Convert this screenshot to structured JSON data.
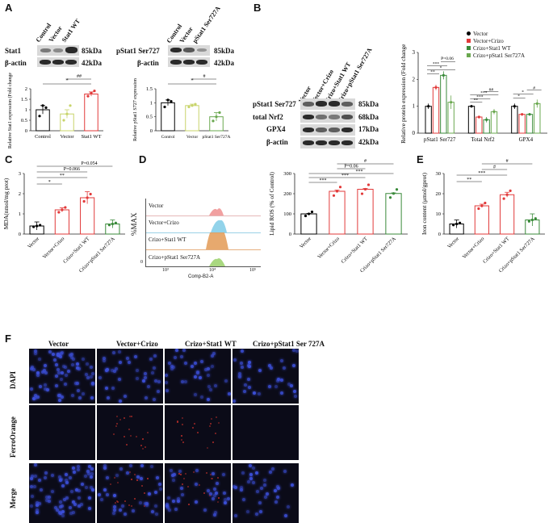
{
  "panels": {
    "A": "A",
    "B": "B",
    "C": "C",
    "D": "D",
    "E": "E",
    "F": "F"
  },
  "blotA1": {
    "lanes": [
      "Control",
      "Vector",
      "Stat1 WT"
    ],
    "rows": [
      {
        "name": "Stat1",
        "kda": "85kDa"
      },
      {
        "name": "β-actin",
        "kda": "42kDa"
      }
    ]
  },
  "blotA2": {
    "lanes": [
      "Control",
      "Vector",
      "pStat1 Ser727A"
    ],
    "rows": [
      {
        "name": "pStat1 Ser727",
        "kda": "85kDa"
      },
      {
        "name": "β-actin",
        "kda": "42kDa"
      }
    ]
  },
  "blotB": {
    "lanes": [
      "Vector",
      "Vector+Crizo",
      "Crizo+Stat1 WT",
      "Crizo+pStat1 Ser727A"
    ],
    "rows": [
      {
        "name": "pStat1 Ser727",
        "kda": "85kDa"
      },
      {
        "name": "total Nrf2",
        "kda": "68kDa"
      },
      {
        "name": "GPX4",
        "kda": "17kDa"
      },
      {
        "name": "β-actin",
        "kda": "42kDa"
      }
    ]
  },
  "legendB": [
    "Vector",
    "Vector+Crizo",
    "Crizo+Stat1 WT",
    "Crizo+pStat1 Ser727A"
  ],
  "flow": {
    "ylabel": "%MAX",
    "xlabel": "Comp-B2-A",
    "tracks": [
      "Vector",
      "Vector+Crizo",
      "Crizo+Stat1 WT",
      "Crizo+pStat1 Ser727A"
    ],
    "ticks": [
      "10³",
      "10⁴",
      "10⁵"
    ],
    "ytick": "0"
  },
  "micro": {
    "cols": [
      "Vector",
      "Vector+Crizo",
      "Crizo+Stat1 WT",
      "Crizo+pStat1 Ser 727A"
    ],
    "rows": [
      "DAPI",
      "FerroOrange",
      "Merge"
    ]
  },
  "chart_data": [
    {
      "id": "A1",
      "type": "bar",
      "ylabel": "Relative Stat1 expression (Fold change)",
      "categories": [
        "Control",
        "Vector",
        "Stat1 WT"
      ],
      "values": [
        1.0,
        0.8,
        1.75
      ],
      "errors": [
        0.2,
        0.2,
        0.1
      ],
      "ylim": [
        0,
        2.0
      ],
      "yticks": [
        0.0,
        0.5,
        1.0,
        1.5,
        2.0
      ],
      "colors": [
        "#000000",
        "#c8d46a",
        "#e23a3a"
      ],
      "points": [
        [
          0.7,
          1.2,
          1.1
        ],
        [
          0.5,
          0.8,
          1.2
        ],
        [
          1.65,
          1.8,
          1.9
        ]
      ],
      "sig": [
        {
          "from": 0,
          "to": 2,
          "label": "*"
        },
        {
          "from": 1,
          "to": 2,
          "label": "##"
        }
      ]
    },
    {
      "id": "A2",
      "type": "bar",
      "ylabel": "Relative pStat1 S727 expression",
      "categories": [
        "Control",
        "Vector",
        "pStat1 Ser727A"
      ],
      "values": [
        1.0,
        0.9,
        0.5
      ],
      "errors": [
        0.1,
        0.05,
        0.15
      ],
      "ylim": [
        0,
        1.5
      ],
      "yticks": [
        0.0,
        0.5,
        1.0,
        1.5
      ],
      "colors": [
        "#000000",
        "#c8d46a",
        "#6aa84f"
      ],
      "points": [
        [
          0.85,
          1.1,
          1.05
        ],
        [
          0.85,
          0.9,
          0.95
        ],
        [
          0.35,
          0.5,
          0.65
        ]
      ],
      "sig": [
        {
          "from": 0,
          "to": 2,
          "label": "*"
        },
        {
          "from": 1,
          "to": 2,
          "label": "#"
        }
      ]
    },
    {
      "id": "B",
      "type": "bar",
      "ylabel": "Relative protein expression (Fold change)",
      "groups": [
        "pStat1 Ser727",
        "Total Nrf2",
        "GPX4"
      ],
      "series": [
        {
          "name": "Vector",
          "values": [
            1.0,
            1.0,
            1.0
          ],
          "color": "#000000"
        },
        {
          "name": "Vector+Crizo",
          "values": [
            1.7,
            0.6,
            0.7
          ],
          "color": "#e23a3a"
        },
        {
          "name": "Crizo+Stat1 WT",
          "values": [
            2.15,
            0.5,
            0.7
          ],
          "color": "#3a8a3a"
        },
        {
          "name": "Crizo+pStat1 Ser727A",
          "values": [
            1.15,
            0.8,
            1.1
          ],
          "color": "#6aa84f"
        }
      ],
      "errors": [
        [
          0.1,
          0.1,
          0.15,
          0.25
        ],
        [
          0.05,
          0.05,
          0.1,
          0.1
        ],
        [
          0.1,
          0.05,
          0.05,
          0.15
        ]
      ],
      "ylim": [
        0,
        3
      ],
      "yticks": [
        0,
        1,
        2,
        3
      ],
      "annotations": [
        "P=0.06",
        "**",
        "***",
        "*",
        "##",
        "***",
        "***",
        "**",
        "#",
        "*",
        "*"
      ]
    },
    {
      "id": "C",
      "type": "bar",
      "ylabel": "MDA(nmol/mg prot)",
      "categories": [
        "Vector",
        "Vector+Crizo",
        "Crizo+Stat1 WT",
        "Crizo+pStat1 Ser727A"
      ],
      "values": [
        0.4,
        1.2,
        1.8,
        0.5
      ],
      "errors": [
        0.2,
        0.1,
        0.3,
        0.2
      ],
      "ylim": [
        0,
        3
      ],
      "yticks": [
        0,
        1,
        2,
        3
      ],
      "colors": [
        "#000000",
        "#e23a3a",
        "#e23a3a",
        "#3a8a3a"
      ],
      "annotations": [
        "P=0.054",
        "P=0.066",
        "**",
        "*"
      ]
    },
    {
      "id": "D",
      "type": "bar",
      "ylabel": "Lipid ROS (% of Control)",
      "categories": [
        "Vector",
        "Vector+Crizo",
        "Crizo+Stat1 WT",
        "Crizo+pStat1 Ser727A"
      ],
      "values": [
        100,
        212,
        222,
        201
      ],
      "errors": [
        2,
        6,
        4,
        3
      ],
      "ylim": [
        0,
        300
      ],
      "yticks": [
        0,
        100,
        200,
        300
      ],
      "colors": [
        "#000000",
        "#e23a3a",
        "#e23a3a",
        "#3a8a3a"
      ],
      "annotations": [
        "#",
        "P=0.06",
        "***",
        "***",
        "***"
      ]
    },
    {
      "id": "E",
      "type": "bar",
      "ylabel": "Iron content (μmol/gprot)",
      "categories": [
        "Vector",
        "Vector+Crizo",
        "Crizo+Stat1 WT",
        "Crizo+pStat1 Ser727A"
      ],
      "values": [
        5,
        14,
        19.5,
        7
      ],
      "errors": [
        2,
        0.8,
        1.2,
        3
      ],
      "ylim": [
        0,
        30
      ],
      "yticks": [
        0,
        10,
        20,
        30
      ],
      "colors": [
        "#000000",
        "#e23a3a",
        "#e23a3a",
        "#3a8a3a"
      ],
      "annotations": [
        "**",
        "***",
        "#",
        "#"
      ]
    }
  ]
}
